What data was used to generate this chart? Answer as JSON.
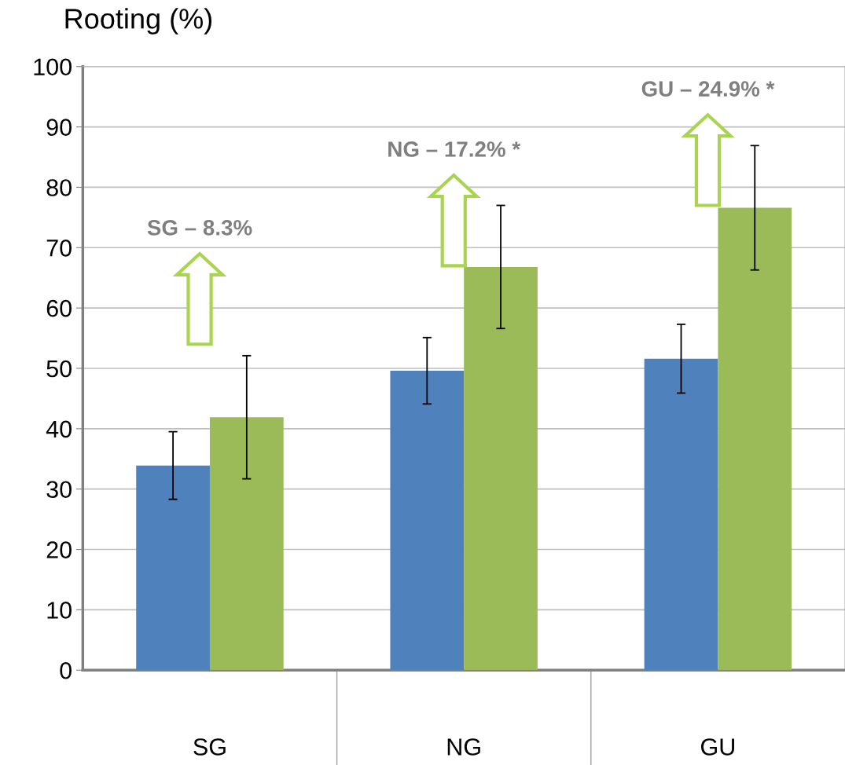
{
  "chart_data": {
    "type": "bar",
    "title": "Rooting (%)",
    "categories": [
      "SG",
      "NG",
      "GU"
    ],
    "series": [
      {
        "color": "#4f81bd",
        "values": [
          33.9,
          49.6,
          51.6
        ],
        "errors": [
          5.6,
          5.5,
          5.7
        ]
      },
      {
        "color": "#9bbb59",
        "values": [
          41.9,
          66.8,
          76.6
        ],
        "errors": [
          10.2,
          10.2,
          10.3
        ]
      }
    ],
    "ylim": [
      0,
      100
    ],
    "yticks": [
      0,
      10,
      20,
      30,
      40,
      50,
      60,
      70,
      80,
      90,
      100
    ],
    "grid": "y",
    "legend": false,
    "annotations": [
      "SG – 8.3%",
      "NG – 17.2% *",
      "GU – 24.9% *"
    ]
  }
}
